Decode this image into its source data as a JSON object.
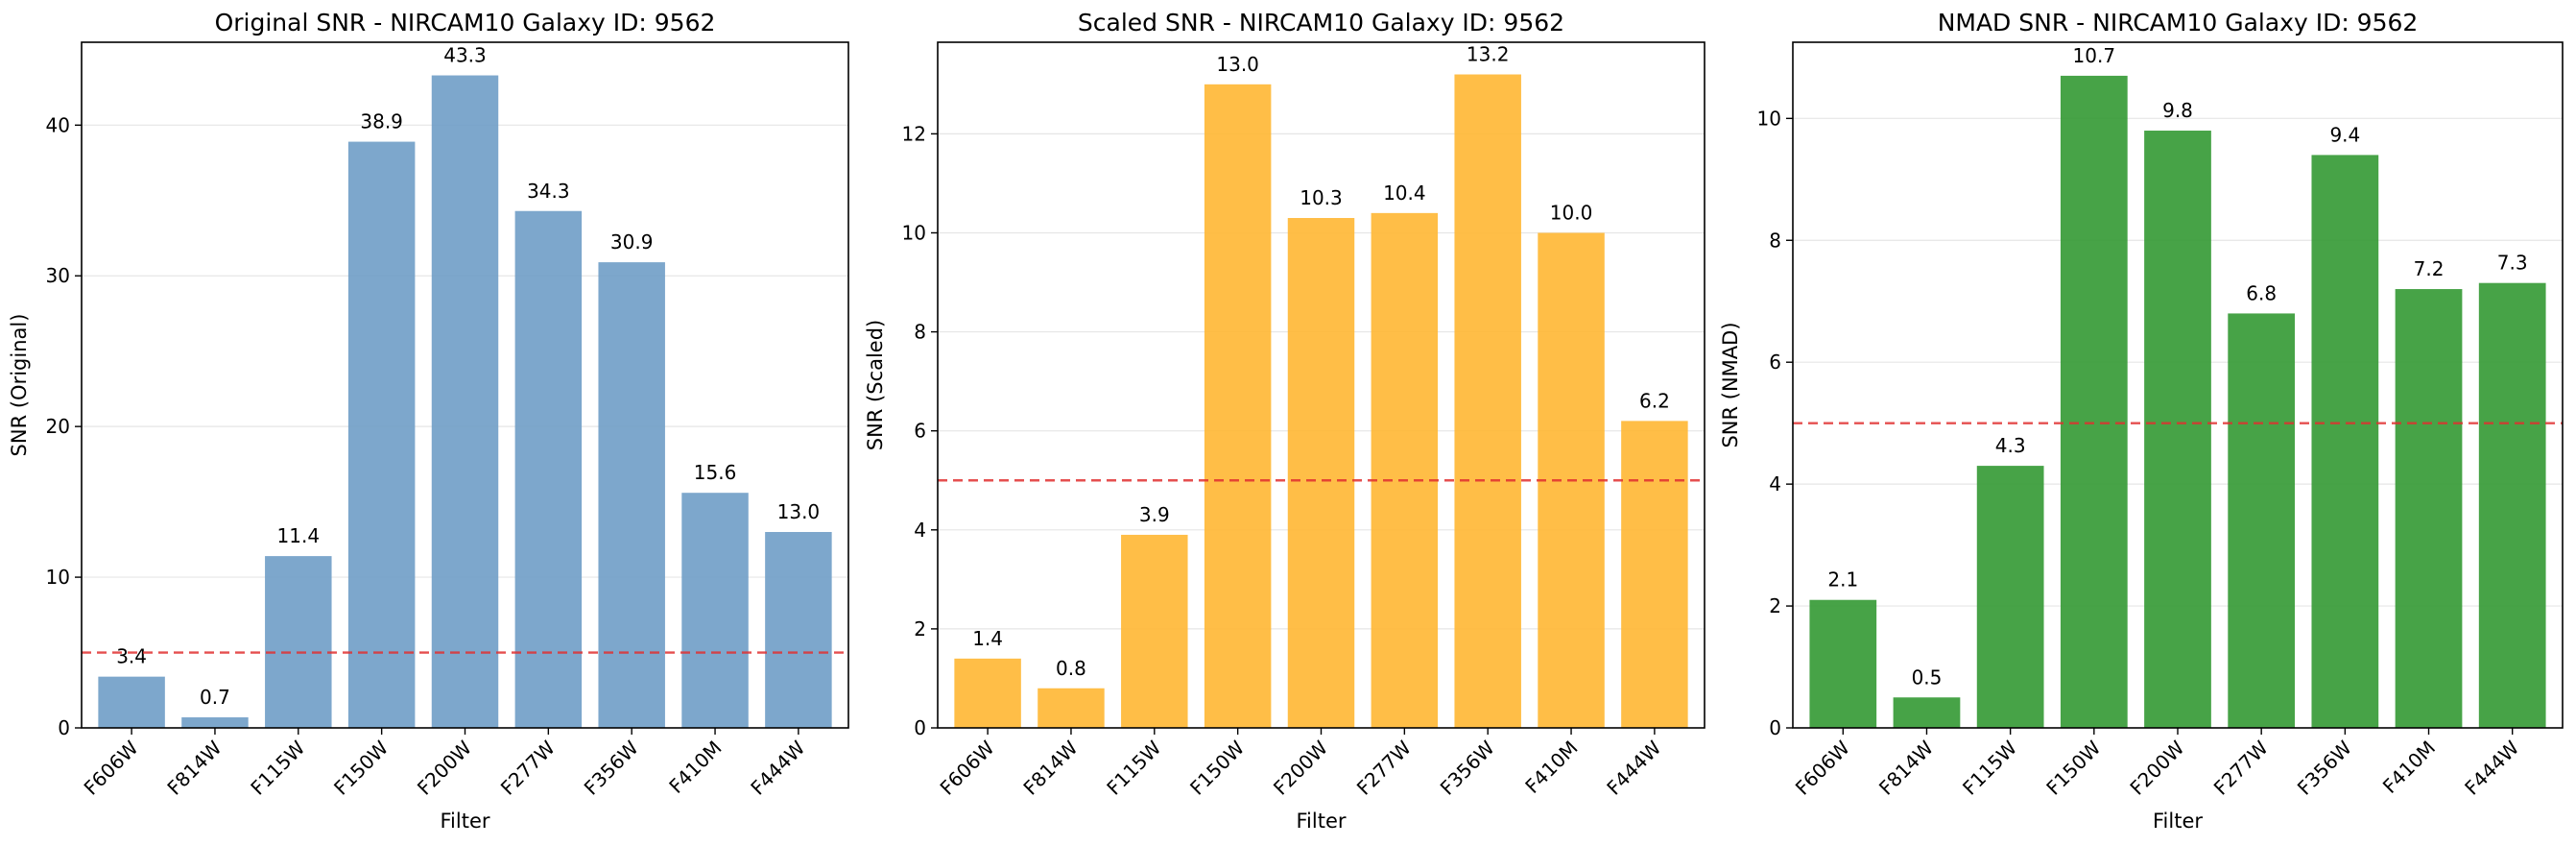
{
  "chart_data": [
    {
      "type": "bar",
      "title": "Original SNR - NIRCAM10 Galaxy ID: 9562",
      "xlabel": "Filter",
      "ylabel": "SNR (Original)",
      "categories": [
        "F606W",
        "F814W",
        "F115W",
        "F150W",
        "F200W",
        "F277W",
        "F356W",
        "F410M",
        "F444W"
      ],
      "values": [
        3.4,
        0.7,
        11.4,
        38.9,
        43.3,
        34.3,
        30.9,
        15.6,
        13.0
      ],
      "value_labels": [
        "3.4",
        "0.7",
        "11.4",
        "38.9",
        "43.3",
        "34.3",
        "30.9",
        "15.6",
        "13.0"
      ],
      "ylim": [
        0,
        45.5
      ],
      "yticks": [
        0,
        10,
        20,
        30,
        40
      ],
      "ytick_labels": [
        "0",
        "10",
        "20",
        "30",
        "40"
      ],
      "threshold": 5,
      "color": "#6f9dc6",
      "grid": "y"
    },
    {
      "type": "bar",
      "title": "Scaled SNR - NIRCAM10 Galaxy ID: 9562",
      "xlabel": "Filter",
      "ylabel": "SNR (Scaled)",
      "categories": [
        "F606W",
        "F814W",
        "F115W",
        "F150W",
        "F200W",
        "F277W",
        "F356W",
        "F410M",
        "F444W"
      ],
      "values": [
        1.4,
        0.8,
        3.9,
        13.0,
        10.3,
        10.4,
        13.2,
        10.0,
        6.2
      ],
      "value_labels": [
        "1.4",
        "0.8",
        "3.9",
        "13.0",
        "10.3",
        "10.4",
        "13.2",
        "10.0",
        "6.2"
      ],
      "ylim": [
        0,
        13.85
      ],
      "yticks": [
        0,
        2,
        4,
        6,
        8,
        10,
        12
      ],
      "ytick_labels": [
        "0",
        "2",
        "4",
        "6",
        "8",
        "10",
        "12"
      ],
      "threshold": 5,
      "color": "#ffb733",
      "grid": "y"
    },
    {
      "type": "bar",
      "title": "NMAD SNR - NIRCAM10 Galaxy ID: 9562",
      "xlabel": "Filter",
      "ylabel": "SNR (NMAD)",
      "categories": [
        "F606W",
        "F814W",
        "F115W",
        "F150W",
        "F200W",
        "F277W",
        "F356W",
        "F410M",
        "F444W"
      ],
      "values": [
        2.1,
        0.5,
        4.3,
        10.7,
        9.8,
        6.8,
        9.4,
        7.2,
        7.3
      ],
      "value_labels": [
        "2.1",
        "0.5",
        "4.3",
        "10.7",
        "9.8",
        "6.8",
        "9.4",
        "7.2",
        "7.3"
      ],
      "ylim": [
        0,
        11.25
      ],
      "yticks": [
        0,
        2,
        4,
        6,
        8,
        10
      ],
      "ytick_labels": [
        "0",
        "2",
        "4",
        "6",
        "8",
        "10"
      ],
      "threshold": 5,
      "color": "#339933",
      "grid": "y"
    }
  ],
  "colors": {
    "threshold_line": "#e03030",
    "grid": "#e6e6e6",
    "axes": "#000000"
  }
}
